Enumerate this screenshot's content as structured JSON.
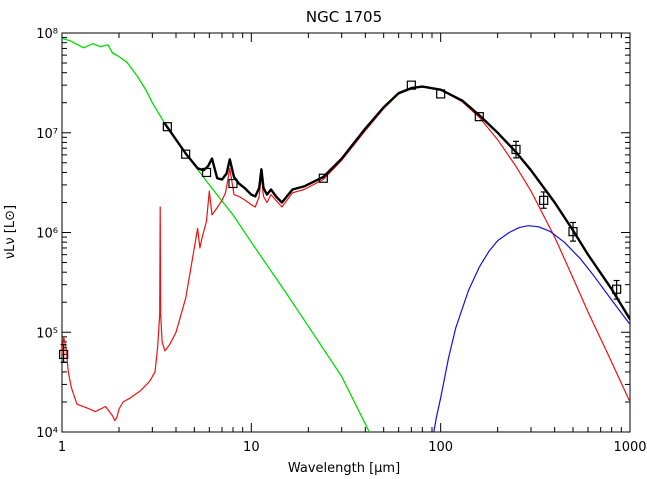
{
  "chart_data": {
    "type": "line",
    "title": "NGC 1705",
    "xlabel": "Wavelength [μm]",
    "ylabel": "νLν [L⊙]",
    "x_scale": "log",
    "y_scale": "log",
    "xlim": [
      1,
      1000
    ],
    "ylim": [
      10000,
      100000000
    ],
    "grid": false,
    "x_ticks": [
      "1",
      "10",
      "100",
      "1000"
    ],
    "y_ticks": [
      "10⁴",
      "10⁵",
      "10⁶",
      "10⁷",
      "10⁸"
    ],
    "colors": {
      "total": "#000000",
      "stellar": "#00dd00",
      "dust": "#ee1111",
      "cold_dust": "#1111dd",
      "photometry": "#000000"
    },
    "series": [
      {
        "key": "stellar",
        "x": [
          1.0,
          1.1,
          1.2,
          1.3,
          1.45,
          1.6,
          1.75,
          1.85,
          2.0,
          2.2,
          2.5,
          2.8,
          3.0,
          3.5,
          4.5,
          6,
          8,
          10,
          15,
          20,
          30,
          42
        ],
        "y": [
          88000000,
          84000000,
          77000000,
          71000000,
          78000000,
          73000000,
          76000000,
          63000000,
          58000000,
          51000000,
          37000000,
          26000000,
          20000000,
          12300000,
          6200000,
          3000000,
          1500000,
          800000,
          260000,
          115000,
          36000,
          10000
        ]
      },
      {
        "key": "total",
        "x": [
          3.5,
          4.5,
          5.2,
          5.6,
          5.9,
          6.2,
          6.6,
          7.0,
          7.4,
          7.7,
          8.1,
          8.6,
          9.2,
          10.0,
          10.5,
          11.0,
          11.3,
          11.6,
          12.1,
          12.7,
          13.5,
          14.5,
          16.5,
          19,
          24,
          30,
          40,
          50,
          60,
          70,
          80,
          100,
          130,
          160,
          200,
          250,
          300,
          400,
          500,
          600,
          800,
          1000
        ],
        "y": [
          12300000,
          6200000,
          4400000,
          4200000,
          4600000,
          5500000,
          3500000,
          3400000,
          3900000,
          5400000,
          3600000,
          3100000,
          2800000,
          2400000,
          2300000,
          2800000,
          4300000,
          2800000,
          2400000,
          2700000,
          2300000,
          2000000,
          2700000,
          2900000,
          3600000,
          5500000,
          11000000,
          18000000,
          25000000,
          28000000,
          29000000,
          27000000,
          21000000,
          15000000,
          10000000,
          6400000,
          4200000,
          2000000,
          1050000,
          600000,
          270000,
          135000
        ]
      },
      {
        "key": "dust",
        "x": [
          1.0,
          1.02,
          1.05,
          1.08,
          1.12,
          1.2,
          1.35,
          1.5,
          1.7,
          1.85,
          1.9,
          1.95,
          2.0,
          2.1,
          2.3,
          2.6,
          2.9,
          3.1,
          3.2,
          3.28,
          3.3,
          3.32,
          3.38,
          3.5,
          3.7,
          4.0,
          4.5,
          5.0,
          5.2,
          5.35,
          5.5,
          5.8,
          6.0,
          6.2,
          6.5,
          7.0,
          7.3,
          7.7,
          8.1,
          8.6,
          9.3,
          10.0,
          10.5,
          11.0,
          11.3,
          11.6,
          12.1,
          12.7,
          13.5,
          14.5,
          16.5,
          19,
          24,
          30,
          40,
          50,
          60,
          70,
          80,
          100,
          130,
          160,
          200,
          250,
          300,
          400,
          500,
          600,
          800,
          1000
        ],
        "y": [
          60000,
          90000,
          70000,
          40000,
          28000,
          19000,
          17500,
          16000,
          18000,
          14500,
          13000,
          14000,
          17000,
          20000,
          22000,
          26000,
          32000,
          40000,
          70000,
          150000,
          1800000,
          150000,
          80000,
          65000,
          75000,
          100000,
          220000,
          700000,
          1100000,
          700000,
          900000,
          1300000,
          2600000,
          1500000,
          1700000,
          2100000,
          2500000,
          4400000,
          2400000,
          2300000,
          2100000,
          1900000,
          1800000,
          2300000,
          3800000,
          2300000,
          2000000,
          2400000,
          2100000,
          1800000,
          2500000,
          2700000,
          3400000,
          5300000,
          10500000,
          17500000,
          24500000,
          27500000,
          29000000,
          27000000,
          20500000,
          14300000,
          8500000,
          4600000,
          2600000,
          900000,
          350000,
          160000,
          50000,
          20000
        ]
      },
      {
        "key": "cold_dust",
        "x": [
          92,
          95,
          100,
          110,
          120,
          140,
          160,
          180,
          200,
          230,
          260,
          290,
          330,
          380,
          450,
          550,
          650,
          800,
          1000
        ],
        "y": [
          10000,
          14000,
          22000,
          55000,
          110000,
          260000,
          450000,
          650000,
          830000,
          1000000,
          1120000,
          1170000,
          1140000,
          1020000,
          800000,
          540000,
          360000,
          210000,
          120000
        ]
      }
    ],
    "photometry": [
      {
        "x": 3.6,
        "y": 11500000
      },
      {
        "x": 4.5,
        "y": 6100000
      },
      {
        "x": 5.8,
        "y": 4000000
      },
      {
        "x": 8.0,
        "y": 3100000
      },
      {
        "x": 24,
        "y": 3500000
      },
      {
        "x": 70,
        "y": 30000000
      },
      {
        "x": 100,
        "y": 24500000
      },
      {
        "x": 160,
        "y": 14500000
      },
      {
        "x": 250,
        "y": 6800000,
        "err_lo": 5600000,
        "err_hi": 8200000
      },
      {
        "x": 350,
        "y": 2100000,
        "err_lo": 1750000,
        "err_hi": 2550000
      },
      {
        "x": 500,
        "y": 1020000,
        "err_lo": 820000,
        "err_hi": 1260000
      },
      {
        "x": 850,
        "y": 270000,
        "err_lo": 215000,
        "err_hi": 330000
      },
      {
        "x": 1.02,
        "y": 60000,
        "err_lo": 50000,
        "err_hi": 75000
      }
    ]
  }
}
